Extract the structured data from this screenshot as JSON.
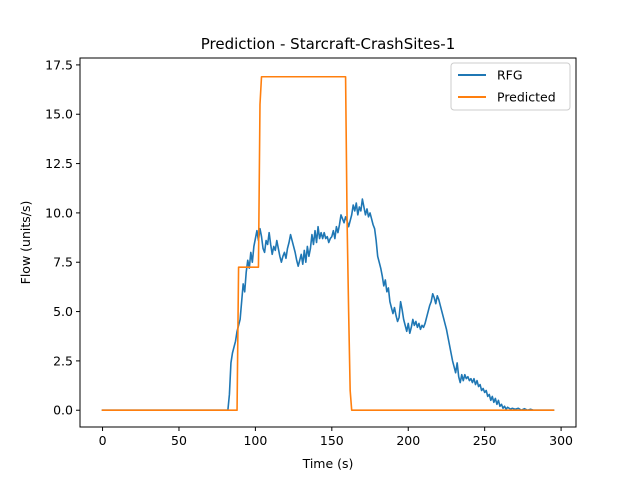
{
  "chart_data": {
    "type": "line",
    "title": "Prediction - Starcraft-CrashSites-1",
    "xlabel": "Time (s)",
    "ylabel": "Flow (units/s)",
    "xlim": [
      -14.75,
      309.75
    ],
    "ylim": [
      -0.85,
      17.85
    ],
    "xticks": [
      0,
      50,
      100,
      150,
      200,
      250,
      300
    ],
    "yticks": [
      0.0,
      2.5,
      5.0,
      7.5,
      10.0,
      12.5,
      15.0,
      17.5
    ],
    "xtick_labels": [
      "0",
      "50",
      "100",
      "150",
      "200",
      "250",
      "300"
    ],
    "ytick_labels": [
      "0.0",
      "2.5",
      "5.0",
      "7.5",
      "10.0",
      "12.5",
      "15.0",
      "17.5"
    ],
    "grid": false,
    "legend_position": "top-right",
    "series": [
      {
        "name": "RFG",
        "color": "#1f77b4",
        "points": [
          [
            0,
            0
          ],
          [
            82,
            0
          ],
          [
            83,
            0.8
          ],
          [
            84,
            2.4
          ],
          [
            85,
            2.9
          ],
          [
            86,
            3.2
          ],
          [
            87,
            3.5
          ],
          [
            88,
            4.0
          ],
          [
            89,
            4.3
          ],
          [
            90,
            4.6
          ],
          [
            91,
            5.5
          ],
          [
            92,
            6.4
          ],
          [
            93,
            6.0
          ],
          [
            94,
            7.0
          ],
          [
            95,
            7.6
          ],
          [
            96,
            7.2
          ],
          [
            97,
            8.0
          ],
          [
            98,
            7.5
          ],
          [
            99,
            8.3
          ],
          [
            100,
            8.7
          ],
          [
            101,
            9.1
          ],
          [
            102,
            8.6
          ],
          [
            103,
            9.2
          ],
          [
            104,
            8.8
          ],
          [
            105,
            8.2
          ],
          [
            106,
            8.0
          ],
          [
            107,
            8.6
          ],
          [
            108,
            8.4
          ],
          [
            109,
            9.0
          ],
          [
            110,
            8.4
          ],
          [
            111,
            7.9
          ],
          [
            112,
            8.3
          ],
          [
            113,
            8.1
          ],
          [
            114,
            8.6
          ],
          [
            115,
            8.2
          ],
          [
            116,
            7.8
          ],
          [
            117,
            7.5
          ],
          [
            118,
            7.8
          ],
          [
            119,
            8.0
          ],
          [
            120,
            7.7
          ],
          [
            121,
            8.2
          ],
          [
            122,
            8.5
          ],
          [
            123,
            8.9
          ],
          [
            124,
            8.6
          ],
          [
            125,
            8.3
          ],
          [
            126,
            8.0
          ],
          [
            127,
            7.6
          ],
          [
            128,
            7.3
          ],
          [
            129,
            7.6
          ],
          [
            130,
            7.9
          ],
          [
            131,
            7.4
          ],
          [
            132,
            8.1
          ],
          [
            133,
            7.5
          ],
          [
            134,
            8.3
          ],
          [
            135,
            7.8
          ],
          [
            136,
            8.2
          ],
          [
            137,
            8.9
          ],
          [
            138,
            8.4
          ],
          [
            139,
            9.1
          ],
          [
            140,
            8.5
          ],
          [
            141,
            9.3
          ],
          [
            142,
            8.7
          ],
          [
            143,
            9.0
          ],
          [
            144,
            8.7
          ],
          [
            145,
            9.0
          ],
          [
            146,
            8.7
          ],
          [
            147,
            8.8
          ],
          [
            148,
            8.5
          ],
          [
            149,
            8.7
          ],
          [
            150,
            8.8
          ],
          [
            151,
            9.1
          ],
          [
            152,
            8.7
          ],
          [
            153,
            9.3
          ],
          [
            154,
            9.0
          ],
          [
            155,
            9.4
          ],
          [
            156,
            9.9
          ],
          [
            157,
            9.7
          ],
          [
            158,
            9.5
          ],
          [
            159,
            9.8
          ],
          [
            160,
            9.6
          ],
          [
            161,
            9.3
          ],
          [
            162,
            9.6
          ],
          [
            163,
            9.9
          ],
          [
            164,
            10.4
          ],
          [
            165,
            10.1
          ],
          [
            166,
            10.5
          ],
          [
            167,
            9.9
          ],
          [
            168,
            10.3
          ],
          [
            169,
            10.1
          ],
          [
            170,
            10.7
          ],
          [
            171,
            10.3
          ],
          [
            172,
            9.9
          ],
          [
            173,
            10.2
          ],
          [
            174,
            9.8
          ],
          [
            175,
            10.0
          ],
          [
            176,
            9.7
          ],
          [
            177,
            9.4
          ],
          [
            178,
            9.2
          ],
          [
            179,
            8.6
          ],
          [
            180,
            7.8
          ],
          [
            181,
            7.5
          ],
          [
            182,
            7.2
          ],
          [
            183,
            6.8
          ],
          [
            184,
            6.3
          ],
          [
            185,
            6.6
          ],
          [
            186,
            6.0
          ],
          [
            187,
            6.2
          ],
          [
            188,
            5.5
          ],
          [
            189,
            5.2
          ],
          [
            190,
            4.9
          ],
          [
            191,
            5.2
          ],
          [
            192,
            4.8
          ],
          [
            193,
            4.5
          ],
          [
            194,
            4.7
          ],
          [
            195,
            5.5
          ],
          [
            196,
            5.1
          ],
          [
            197,
            4.6
          ],
          [
            198,
            4.3
          ],
          [
            199,
            4.0
          ],
          [
            200,
            4.4
          ],
          [
            201,
            3.9
          ],
          [
            202,
            4.2
          ],
          [
            203,
            4.6
          ],
          [
            204,
            4.3
          ],
          [
            205,
            4.5
          ],
          [
            206,
            4.2
          ],
          [
            207,
            4.4
          ],
          [
            208,
            4.1
          ],
          [
            209,
            4.3
          ],
          [
            210,
            4.2
          ],
          [
            211,
            4.4
          ],
          [
            212,
            4.7
          ],
          [
            213,
            5.0
          ],
          [
            214,
            5.3
          ],
          [
            215,
            5.5
          ],
          [
            216,
            5.9
          ],
          [
            217,
            5.7
          ],
          [
            218,
            5.4
          ],
          [
            219,
            5.8
          ],
          [
            220,
            5.6
          ],
          [
            221,
            5.3
          ],
          [
            222,
            5.0
          ],
          [
            223,
            4.7
          ],
          [
            224,
            4.4
          ],
          [
            225,
            4.1
          ],
          [
            226,
            3.7
          ],
          [
            227,
            3.3
          ],
          [
            228,
            2.9
          ],
          [
            229,
            2.5
          ],
          [
            230,
            2.2
          ],
          [
            231,
            1.9
          ],
          [
            232,
            2.4
          ],
          [
            233,
            1.7
          ],
          [
            234,
            1.4
          ],
          [
            235,
            1.8
          ],
          [
            236,
            1.5
          ],
          [
            237,
            1.8
          ],
          [
            238,
            1.6
          ],
          [
            239,
            1.7
          ],
          [
            240,
            1.5
          ],
          [
            241,
            1.6
          ],
          [
            242,
            1.4
          ],
          [
            243,
            1.6
          ],
          [
            244,
            1.3
          ],
          [
            245,
            1.5
          ],
          [
            246,
            1.2
          ],
          [
            247,
            1.3
          ],
          [
            248,
            1.0
          ],
          [
            249,
            1.1
          ],
          [
            250,
            0.9
          ],
          [
            251,
            1.0
          ],
          [
            252,
            0.7
          ],
          [
            253,
            0.8
          ],
          [
            254,
            0.5
          ],
          [
            255,
            0.7
          ],
          [
            256,
            0.4
          ],
          [
            257,
            0.6
          ],
          [
            258,
            0.3
          ],
          [
            259,
            0.5
          ],
          [
            260,
            0.2
          ],
          [
            261,
            0.3
          ],
          [
            262,
            0.1
          ],
          [
            263,
            0.2
          ],
          [
            264,
            0.05
          ],
          [
            265,
            0.15
          ],
          [
            266,
            0.1
          ],
          [
            267,
            0.05
          ],
          [
            268,
            0.1
          ],
          [
            270,
            0.05
          ],
          [
            272,
            0.1
          ],
          [
            274,
            0.0
          ],
          [
            276,
            0.08
          ],
          [
            278,
            0.0
          ],
          [
            280,
            0.05
          ],
          [
            282,
            0.0
          ],
          [
            295,
            0.0
          ]
        ]
      },
      {
        "name": "Predicted",
        "color": "#ff7f0e",
        "points": [
          [
            0,
            0
          ],
          [
            88,
            0
          ],
          [
            89,
            7.25
          ],
          [
            101,
            7.25
          ],
          [
            102,
            7.25
          ],
          [
            103,
            15.5
          ],
          [
            104,
            16.9
          ],
          [
            159,
            16.9
          ],
          [
            160,
            9.5
          ],
          [
            161,
            5.0
          ],
          [
            162,
            1.0
          ],
          [
            163,
            0
          ],
          [
            295,
            0
          ]
        ]
      }
    ]
  }
}
